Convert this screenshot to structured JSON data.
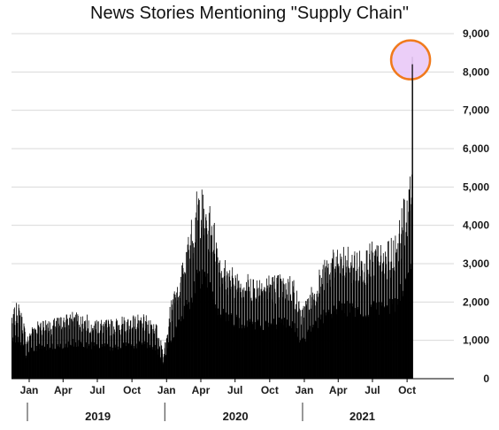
{
  "chart_data": {
    "type": "bar",
    "title": "News Stories Mentioning \"Supply Chain\"",
    "y_axis": {
      "ylim": [
        0,
        9000
      ],
      "tick_values": [
        0,
        1000,
        2000,
        3000,
        4000,
        5000,
        6000,
        7000,
        8000,
        9000
      ],
      "tick_labels": [
        "0",
        "1,000",
        "2,000",
        "3,000",
        "4,000",
        "5,000",
        "6,000",
        "7,000",
        "8,000",
        "9,000"
      ],
      "position": "right",
      "grid": true
    },
    "x_axis": {
      "date_range": [
        "2018-11-15",
        "2021-11-05"
      ],
      "month_ticks": [
        {
          "date": "2019-01-01",
          "label": "Jan"
        },
        {
          "date": "2019-04-01",
          "label": "Apr"
        },
        {
          "date": "2019-07-01",
          "label": "Jul"
        },
        {
          "date": "2019-10-01",
          "label": "Oct"
        },
        {
          "date": "2020-01-01",
          "label": "Jan"
        },
        {
          "date": "2020-04-01",
          "label": "Apr"
        },
        {
          "date": "2020-07-01",
          "label": "Jul"
        },
        {
          "date": "2020-10-01",
          "label": "Oct"
        },
        {
          "date": "2021-01-01",
          "label": "Jan"
        },
        {
          "date": "2021-04-01",
          "label": "Apr"
        },
        {
          "date": "2021-07-01",
          "label": "Jul"
        },
        {
          "date": "2021-10-01",
          "label": "Oct"
        }
      ],
      "years": [
        "2019",
        "2020",
        "2021"
      ],
      "year_separators": [
        "2019-01-01",
        "2020-01-01",
        "2021-01-01"
      ]
    },
    "series": [
      {
        "color": "#000000",
        "frequency": "daily",
        "points": [
          [
            "2018-11-15",
            1500
          ],
          [
            "2018-12-01",
            1700
          ],
          [
            "2018-12-15",
            1350
          ],
          [
            "2018-12-24",
            900
          ],
          [
            "2019-01-05",
            1200
          ],
          [
            "2019-02-01",
            1350
          ],
          [
            "2019-03-01",
            1300
          ],
          [
            "2019-04-01",
            1400
          ],
          [
            "2019-05-01",
            1500
          ],
          [
            "2019-06-01",
            1400
          ],
          [
            "2019-07-01",
            1350
          ],
          [
            "2019-08-01",
            1300
          ],
          [
            "2019-09-01",
            1350
          ],
          [
            "2019-10-01",
            1400
          ],
          [
            "2019-11-01",
            1400
          ],
          [
            "2019-12-01",
            1300
          ],
          [
            "2019-12-24",
            600
          ],
          [
            "2020-01-05",
            1500
          ],
          [
            "2020-02-01",
            2200
          ],
          [
            "2020-03-01",
            3300
          ],
          [
            "2020-03-25",
            4300
          ],
          [
            "2020-04-15",
            4000
          ],
          [
            "2020-05-01",
            3700
          ],
          [
            "2020-05-20",
            2800
          ],
          [
            "2020-06-15",
            2500
          ],
          [
            "2020-08-01",
            2300
          ],
          [
            "2020-10-01",
            2300
          ],
          [
            "2020-12-01",
            2300
          ],
          [
            "2020-12-24",
            1500
          ],
          [
            "2021-01-05",
            1800
          ],
          [
            "2021-02-01",
            2300
          ],
          [
            "2021-03-01",
            2700
          ],
          [
            "2021-04-01",
            2900
          ],
          [
            "2021-05-01",
            2900
          ],
          [
            "2021-06-01",
            2800
          ],
          [
            "2021-07-01",
            3000
          ],
          [
            "2021-08-01",
            2900
          ],
          [
            "2021-09-01",
            3200
          ],
          [
            "2021-10-01",
            4300
          ],
          [
            "2021-10-12",
            4600
          ],
          [
            "2021-10-15",
            8200
          ]
        ]
      }
    ],
    "annotations": [
      {
        "type": "circle",
        "date": "2021-10-15",
        "value": 8200,
        "fill": "#e8c6f7",
        "stroke": "#f07a1c"
      }
    ]
  }
}
